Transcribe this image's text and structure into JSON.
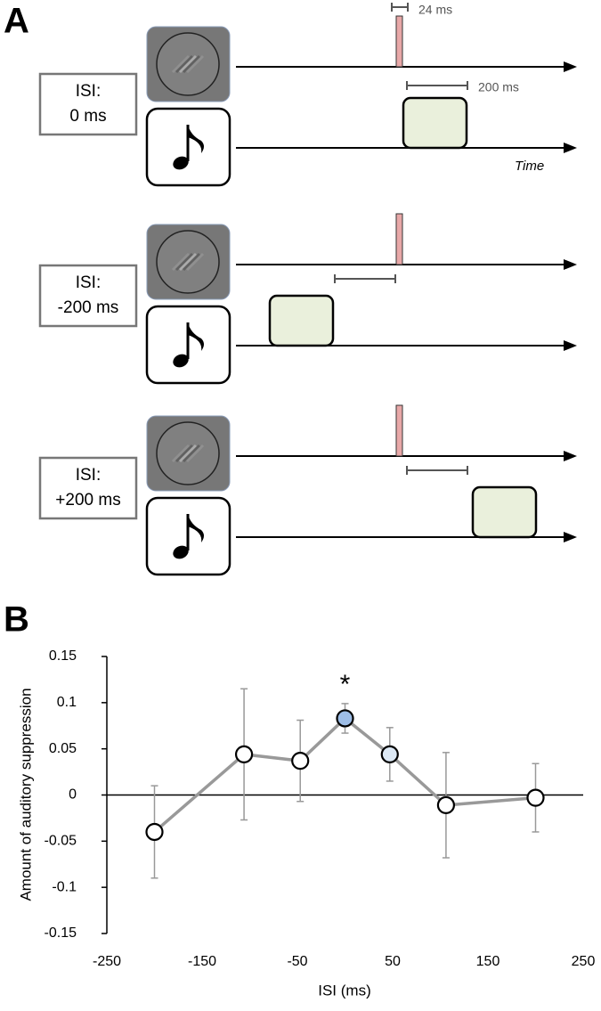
{
  "panel_a": {
    "label": "A",
    "rows": [
      {
        "isi": [
          "ISI:",
          "0 ms"
        ]
      },
      {
        "isi": [
          "ISI:",
          "-200 ms"
        ]
      },
      {
        "isi": [
          "ISI:",
          "+200 ms"
        ]
      }
    ],
    "pulse_duration": "24 ms",
    "tone_duration": "200 ms",
    "time_label": "Time"
  },
  "panel_b": {
    "label": "B"
  },
  "chart_data": {
    "type": "line",
    "x": [
      -200,
      -106,
      -47,
      0,
      47,
      106,
      200
    ],
    "series": [
      {
        "color": "#999999",
        "values": [
          -0.04,
          0.044,
          0.037,
          0.083,
          0.044,
          -0.011,
          -0.003
        ],
        "errors": [
          0.05,
          0.071,
          0.044,
          0.016,
          0.029,
          0.057,
          0.037
        ],
        "point_colors": [
          "#ffffff",
          "#ffffff",
          "#ffffff",
          "#9dbde6",
          "#dde9f5",
          "#ffffff",
          "#ffffff"
        ]
      }
    ],
    "annotations": [
      {
        "text": "*",
        "x": 0
      }
    ],
    "xlabel": "ISI (ms)",
    "ylabel": "Amount of auditory suppression",
    "xlim": [
      -250,
      250
    ],
    "xticks": [
      -250,
      -150,
      -50,
      50,
      150,
      250
    ],
    "ylim": [
      -0.15,
      0.15
    ],
    "yticks": [
      -0.15,
      -0.1,
      -0.05,
      0,
      0.05,
      0.1,
      0.15
    ]
  }
}
